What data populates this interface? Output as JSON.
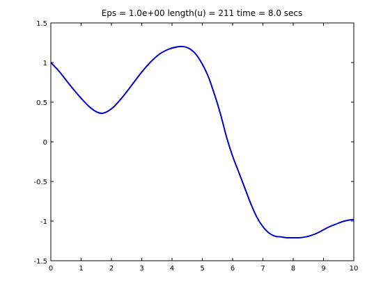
{
  "chart_data": {
    "type": "line",
    "title": "Eps = 1.0e+00    length(u) = 211    time = 8.0 secs",
    "xlabel": "",
    "ylabel": "",
    "xlim": [
      0,
      10
    ],
    "ylim": [
      -1.5,
      1.5
    ],
    "xticks": [
      0,
      1,
      2,
      3,
      4,
      5,
      6,
      7,
      8,
      9,
      10
    ],
    "xtick_labels": [
      "0",
      "1",
      "2",
      "3",
      "4",
      "5",
      "6",
      "7",
      "8",
      "9",
      "10"
    ],
    "yticks": [
      -1.5,
      -1,
      -0.5,
      0,
      0.5,
      1,
      1.5
    ],
    "ytick_labels": [
      "-1.5",
      "-1",
      "-0.5",
      "0",
      "0.5",
      "1",
      "1.5"
    ],
    "grid": false,
    "line_color": "#0000cc",
    "series": [
      {
        "x": [
          0,
          0.25,
          0.5,
          0.75,
          1.0,
          1.25,
          1.5,
          1.7,
          1.9,
          2.1,
          2.4,
          2.7,
          3.0,
          3.3,
          3.6,
          3.9,
          4.2,
          4.4,
          4.6,
          4.8,
          5.0,
          5.2,
          5.4,
          5.6,
          5.8,
          6.0,
          6.2,
          6.4,
          6.6,
          6.8,
          7.0,
          7.2,
          7.4,
          7.6,
          7.8,
          8.0,
          8.2,
          8.4,
          8.6,
          8.8,
          9.0,
          9.2,
          9.4,
          9.6,
          9.8,
          10.0
        ],
        "y": [
          1.0,
          0.9,
          0.78,
          0.66,
          0.55,
          0.45,
          0.38,
          0.36,
          0.39,
          0.45,
          0.58,
          0.73,
          0.88,
          1.01,
          1.11,
          1.17,
          1.2,
          1.2,
          1.17,
          1.1,
          0.98,
          0.82,
          0.6,
          0.35,
          0.06,
          -0.18,
          -0.38,
          -0.58,
          -0.78,
          -0.95,
          -1.07,
          -1.15,
          -1.19,
          -1.2,
          -1.21,
          -1.21,
          -1.21,
          -1.2,
          -1.18,
          -1.15,
          -1.11,
          -1.07,
          -1.04,
          -1.01,
          -0.99,
          -0.98
        ]
      }
    ]
  }
}
